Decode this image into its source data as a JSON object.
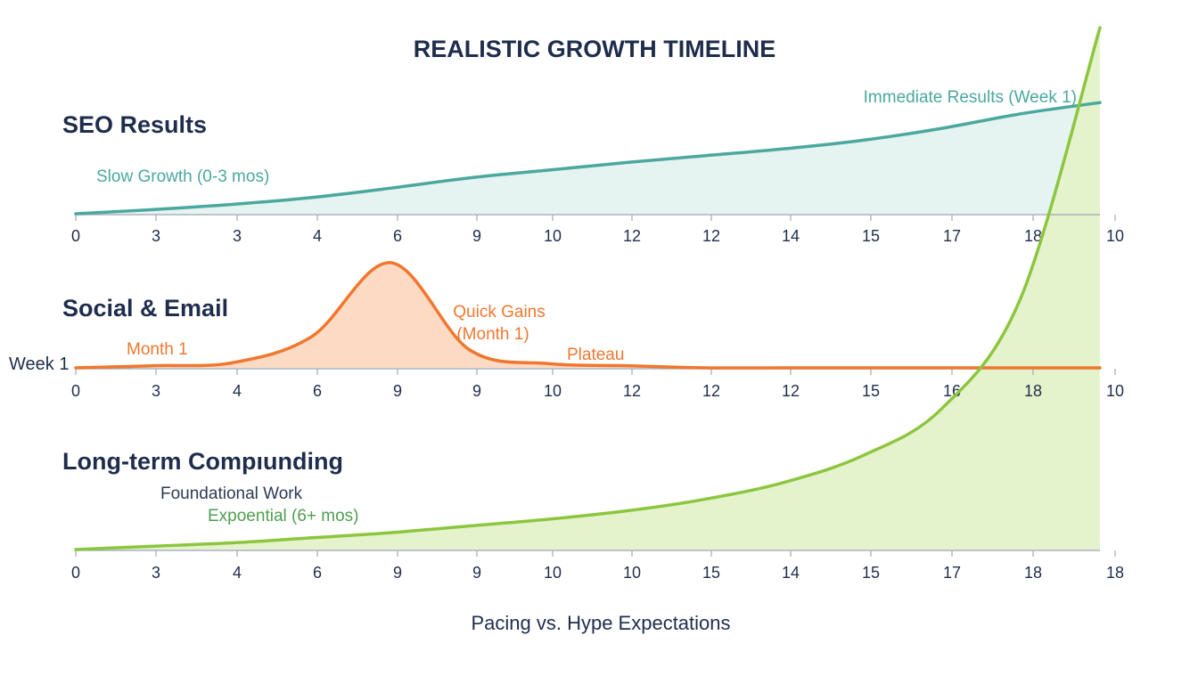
{
  "title": "REALISTIC GROWTH TIMELINE",
  "footer": "Pacing vs. Hype Expectations",
  "colors": {
    "title": "#1f2d4d",
    "seo": "#4aa89e",
    "seo_fill": "#e5f3f0",
    "social": "#f0772f",
    "social_fill": "#fcd8c0",
    "longterm": "#8cc63f",
    "longterm_fill": "#e4f2c9",
    "axis": "#a9b0ba",
    "tick_text": "#1f2d4d",
    "foundational_text": "#2c3a55",
    "exponential_text": "#4f9e4f"
  },
  "chart_data": [
    {
      "type": "area",
      "title": "SEO Results",
      "x_tick_labels": [
        "0",
        "3",
        "3",
        "4",
        "6",
        "9",
        "10",
        "12",
        "12",
        "14",
        "15",
        "17",
        "18",
        "10"
      ],
      "series": [
        {
          "name": "SEO Results",
          "values": [
            0.0,
            0.05,
            0.11,
            0.19,
            0.3,
            0.42,
            0.51,
            0.6,
            0.68,
            0.76,
            0.86,
            1.0,
            1.17,
            1.3
          ]
        }
      ],
      "annotations": [
        "Slow Growth (0-3 mos)",
        "Immediate Results (Week 1)"
      ]
    },
    {
      "type": "area",
      "title": "Social & Email",
      "x_tick_labels": [
        "0",
        "3",
        "4",
        "6",
        "9",
        "9",
        "10",
        "12",
        "12",
        "12",
        "15",
        "16",
        "18",
        "10"
      ],
      "series": [
        {
          "name": "Social & Email",
          "values": [
            0.0,
            0.02,
            0.05,
            0.3,
            1.0,
            0.17,
            0.04,
            0.02,
            0.0,
            0.0,
            0.0,
            0.0,
            0.0,
            0.0
          ]
        }
      ],
      "annotations": [
        "Week 1",
        "Month 1",
        "Quick Gains",
        "(Month 1)",
        "Plateau"
      ]
    },
    {
      "type": "area",
      "title": "Long-term Compıunding",
      "x_tick_labels": [
        "0",
        "3",
        "4",
        "6",
        "9",
        "9",
        "10",
        "10",
        "15",
        "14",
        "15",
        "17",
        "18",
        "18"
      ],
      "series": [
        {
          "name": "Long-term Compıunding",
          "values": [
            0.0,
            0.02,
            0.04,
            0.07,
            0.1,
            0.14,
            0.18,
            0.23,
            0.3,
            0.4,
            0.56,
            0.84,
            1.5,
            3.1
          ]
        }
      ],
      "annotations": [
        "Foundational Work",
        "Expoential (6+ mos)"
      ]
    }
  ]
}
